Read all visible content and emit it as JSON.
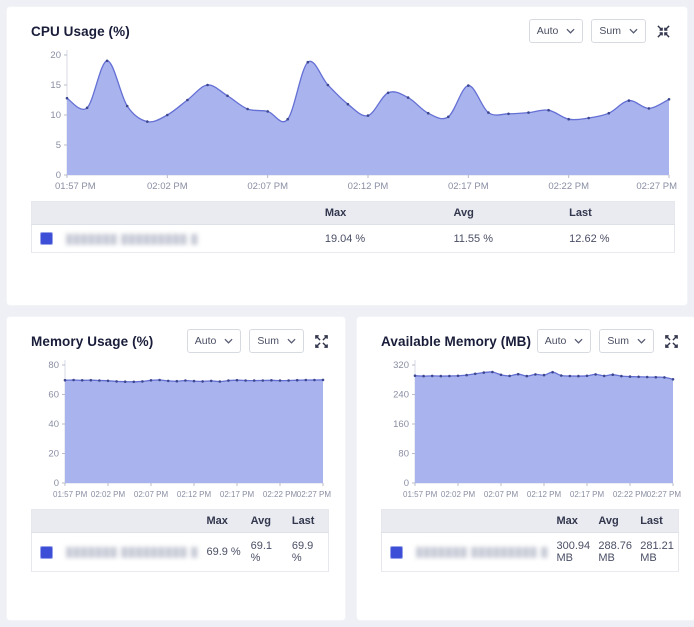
{
  "page_bg": "#eef0f5",
  "charts": [
    {
      "title": "CPU Usage (%)",
      "controls": {
        "interval": "Auto",
        "aggregate": "Sum",
        "resize_icon": "collapse-icon"
      },
      "legend": {
        "headers": {
          "max": "Max",
          "avg": "Avg",
          "last": "Last"
        },
        "row": {
          "name": "███████ █████████ █",
          "max": "19.04 %",
          "avg": "11.55 %",
          "last": "12.62 %"
        }
      }
    },
    {
      "title": "Memory Usage (%)",
      "controls": {
        "interval": "Auto",
        "aggregate": "Sum",
        "resize_icon": "expand-icon"
      },
      "legend": {
        "headers": {
          "max": "Max",
          "avg": "Avg",
          "last": "Last"
        },
        "row": {
          "name": "███████ █████████ █",
          "max": "69.9 %",
          "avg": "69.1 %",
          "last": "69.9 %"
        }
      }
    },
    {
      "title": "Available Memory (MB)",
      "controls": {
        "interval": "Auto",
        "aggregate": "Sum",
        "resize_icon": "expand-icon"
      },
      "legend": {
        "headers": {
          "max": "Max",
          "avg": "Avg",
          "last": "Last"
        },
        "row": {
          "name": "███████ █████████ █",
          "max": "300.94 MB",
          "avg": "288.76 MB",
          "last": "281.21 MB"
        }
      }
    }
  ],
  "chart_data": [
    {
      "type": "area",
      "title": "CPU Usage (%)",
      "xlabel": "",
      "ylabel": "",
      "x_ticks": [
        "01:57 PM",
        "02:02 PM",
        "02:07 PM",
        "02:12 PM",
        "02:17 PM",
        "02:22 PM",
        "02:27 PM"
      ],
      "x_tick_indices": [
        0,
        5,
        10,
        15,
        20,
        25,
        30
      ],
      "values": [
        12.8,
        11.2,
        19.04,
        11.5,
        8.9,
        10.0,
        12.5,
        15.0,
        13.2,
        11.0,
        10.6,
        9.3,
        18.8,
        15.0,
        11.8,
        9.9,
        13.7,
        12.9,
        10.3,
        9.7,
        14.9,
        10.4,
        10.2,
        10.4,
        10.8,
        9.3,
        9.5,
        10.3,
        12.4,
        11.1,
        12.62
      ],
      "ylim": [
        0,
        20
      ],
      "y_ticks": [
        0,
        5,
        10,
        15,
        20
      ],
      "stats": {
        "max": 19.04,
        "avg": 11.55,
        "last": 12.62,
        "unit": "%"
      },
      "grid": false,
      "legend_position": "bottom-table",
      "area_color": "#a9b3ee",
      "line_color": "#6470d4",
      "marker_color": "#3d478f"
    },
    {
      "type": "area",
      "title": "Memory Usage (%)",
      "xlabel": "",
      "ylabel": "",
      "x_ticks": [
        "01:57 PM",
        "02:02 PM",
        "02:07 PM",
        "02:12 PM",
        "02:17 PM",
        "02:22 PM",
        "02:27 PM"
      ],
      "x_tick_indices": [
        0,
        5,
        10,
        15,
        20,
        25,
        30
      ],
      "values": [
        69.7,
        69.8,
        69.6,
        69.7,
        69.5,
        69.3,
        68.9,
        68.7,
        68.6,
        68.9,
        69.6,
        69.8,
        69.2,
        69.0,
        69.5,
        69.1,
        68.9,
        69.2,
        68.8,
        69.4,
        69.7,
        69.5,
        69.4,
        69.5,
        69.6,
        69.4,
        69.5,
        69.7,
        69.8,
        69.8,
        69.9
      ],
      "ylim": [
        0,
        80
      ],
      "y_ticks": [
        0,
        20,
        40,
        60,
        80
      ],
      "stats": {
        "max": 69.9,
        "avg": 69.1,
        "last": 69.9,
        "unit": "%"
      },
      "grid": false,
      "legend_position": "bottom-table",
      "area_color": "#a9b3ee",
      "line_color": "#6470d4",
      "marker_color": "#3d478f"
    },
    {
      "type": "area",
      "title": "Available Memory (MB)",
      "xlabel": "",
      "ylabel": "",
      "x_ticks": [
        "01:57 PM",
        "02:02 PM",
        "02:07 PM",
        "02:12 PM",
        "02:17 PM",
        "02:22 PM",
        "02:27 PM"
      ],
      "x_tick_indices": [
        0,
        5,
        10,
        15,
        20,
        25,
        30
      ],
      "values": [
        291,
        290,
        290.5,
        290,
        290.2,
        290.8,
        292.5,
        296,
        299.5,
        300.94,
        293.5,
        290.5,
        295,
        290,
        294.5,
        292.5,
        300.5,
        291.5,
        290.3,
        290,
        290.6,
        294.5,
        290.5,
        293.8,
        290,
        288.5,
        288,
        287.5,
        287,
        286.5,
        281.21
      ],
      "ylim": [
        0,
        320
      ],
      "y_ticks": [
        0,
        80,
        160,
        240,
        320
      ],
      "stats": {
        "max": 300.94,
        "avg": 288.76,
        "last": 281.21,
        "unit": "MB"
      },
      "grid": false,
      "legend_position": "bottom-table",
      "area_color": "#a9b3ee",
      "line_color": "#6470d4",
      "marker_color": "#3d478f"
    }
  ]
}
